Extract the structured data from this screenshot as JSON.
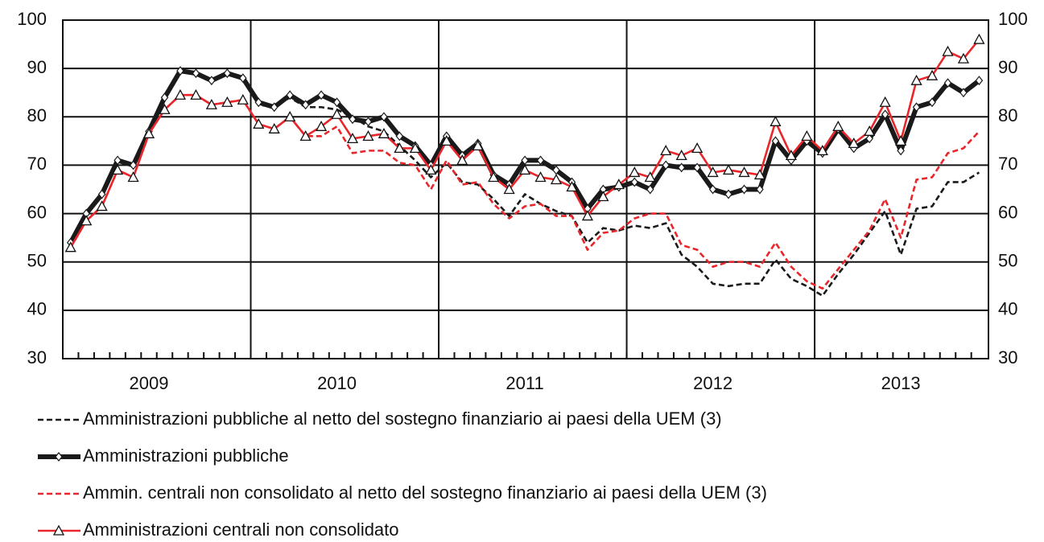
{
  "chart_data": {
    "type": "line",
    "categories": [
      null,
      null,
      null,
      null,
      null,
      "2009",
      null,
      null,
      null,
      null,
      null,
      null,
      null,
      null,
      null,
      null,
      null,
      "2010",
      null,
      null,
      null,
      null,
      null,
      null,
      null,
      null,
      null,
      null,
      null,
      "2011",
      null,
      null,
      null,
      null,
      null,
      null,
      null,
      null,
      null,
      null,
      null,
      "2012",
      null,
      null,
      null,
      null,
      null,
      null,
      null,
      null,
      null,
      null,
      null,
      "2013",
      null,
      null,
      null,
      null,
      null
    ],
    "series": [
      {
        "name": "Amministrazioni pubbliche al netto del sostegno finanziario ai paesi della UEM (3)",
        "color": "#1a1a1a",
        "dashed": true,
        "marker": null,
        "values": [
          54,
          60,
          64,
          71,
          70,
          77,
          84,
          89.5,
          89,
          87.5,
          89,
          88,
          82.5,
          82,
          84,
          82,
          82,
          81.5,
          80,
          78,
          77,
          74,
          71,
          67.5,
          70.5,
          66.5,
          66,
          63,
          59.5,
          64,
          62,
          60.5,
          59.5,
          54,
          57,
          56.5,
          57.5,
          57,
          58,
          51.5,
          49,
          45.5,
          45,
          45.5,
          45.5,
          50.5,
          46.5,
          45,
          43,
          47.5,
          51.5,
          56,
          60.5,
          51.5,
          61,
          61.5,
          66.5,
          66.5,
          68.5
        ]
      },
      {
        "name": "Amministrazioni pubbliche",
        "color": "#1a1a1a",
        "dashed": false,
        "marker": "diamond",
        "values": [
          54,
          60,
          64,
          71,
          70,
          77,
          84,
          89.5,
          89,
          87.5,
          89,
          88,
          83,
          82,
          84.5,
          82.5,
          84.5,
          83,
          79.5,
          79,
          80,
          76,
          74,
          70,
          76,
          72,
          74.5,
          68,
          66,
          71,
          71,
          69,
          66.5,
          61,
          65,
          65.5,
          66.5,
          65,
          70,
          69.5,
          69.5,
          65,
          64,
          65,
          65,
          75,
          71,
          75,
          72.5,
          77.5,
          73.5,
          75.5,
          80.5,
          73,
          82,
          83,
          87,
          85,
          87.5
        ]
      },
      {
        "name": "Ammin. centrali non consolidato al netto del sostegno finanziario ai paesi della UEM (3)",
        "color": "#e8262b",
        "dashed": true,
        "marker": null,
        "values": [
          53,
          58.5,
          61.5,
          69,
          67.5,
          76.5,
          81.5,
          84.5,
          84.5,
          82.5,
          83,
          83.5,
          78.5,
          77.5,
          80,
          76,
          76,
          78,
          72.5,
          73,
          73,
          70.5,
          70,
          65,
          71,
          66,
          66.5,
          62,
          59,
          61.5,
          62,
          59.5,
          59.5,
          52.5,
          56,
          56.5,
          59,
          60,
          60,
          53.5,
          52.5,
          49,
          50,
          50,
          49,
          54,
          49,
          46,
          44.5,
          48.5,
          52.5,
          56.5,
          63,
          55,
          67,
          67.5,
          72.5,
          73.5,
          77
        ]
      },
      {
        "name": "Amministrazioni centrali non consolidato",
        "color": "#e8262b",
        "dashed": false,
        "marker": "triangle",
        "values": [
          53,
          58.5,
          61.5,
          69,
          67.5,
          76.5,
          81.5,
          84.5,
          84.5,
          82.5,
          83,
          83.5,
          78.5,
          77.5,
          80,
          76,
          78,
          80.5,
          75.5,
          76,
          76.5,
          73.5,
          73.5,
          69,
          75,
          71,
          74,
          67.5,
          65,
          69,
          67.5,
          67,
          65.5,
          59.5,
          63.5,
          66,
          68.5,
          67.5,
          73,
          72,
          73.5,
          68.5,
          69,
          68.5,
          68,
          79,
          72,
          76,
          73,
          78,
          74.5,
          77,
          83,
          75,
          87.5,
          88.5,
          93.5,
          92,
          96
        ]
      }
    ],
    "ylim": [
      30,
      100
    ],
    "yticks": [
      30,
      40,
      50,
      60,
      70,
      80,
      90,
      100
    ],
    "y2lim": [
      30,
      100
    ],
    "y2ticks": [
      30,
      40,
      50,
      60,
      70,
      80,
      90,
      100
    ],
    "grid": true
  }
}
